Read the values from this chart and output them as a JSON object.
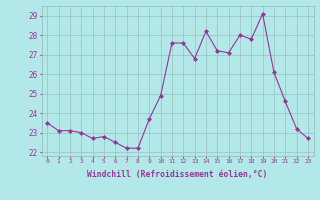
{
  "x": [
    0,
    1,
    2,
    3,
    4,
    5,
    6,
    7,
    8,
    9,
    10,
    11,
    12,
    13,
    14,
    15,
    16,
    17,
    18,
    19,
    20,
    21,
    22,
    23
  ],
  "y": [
    23.5,
    23.1,
    23.1,
    23.0,
    22.7,
    22.8,
    22.5,
    22.2,
    22.2,
    23.7,
    24.9,
    27.6,
    27.6,
    26.8,
    28.2,
    27.2,
    27.1,
    28.0,
    27.8,
    29.1,
    26.1,
    24.6,
    23.2,
    22.7
  ],
  "line_color": "#993399",
  "marker": "D",
  "marker_size": 2,
  "bg_color": "#b3e8e8",
  "grid_color": "#9bbfbf",
  "xlabel": "Windchill (Refroidissement éolien,°C)",
  "xlabel_color": "#993399",
  "tick_color": "#993399",
  "ylim": [
    21.8,
    29.5
  ],
  "yticks": [
    22,
    23,
    24,
    25,
    26,
    27,
    28,
    29
  ],
  "xticks": [
    0,
    1,
    2,
    3,
    4,
    5,
    6,
    7,
    8,
    9,
    10,
    11,
    12,
    13,
    14,
    15,
    16,
    17,
    18,
    19,
    20,
    21,
    22,
    23
  ]
}
